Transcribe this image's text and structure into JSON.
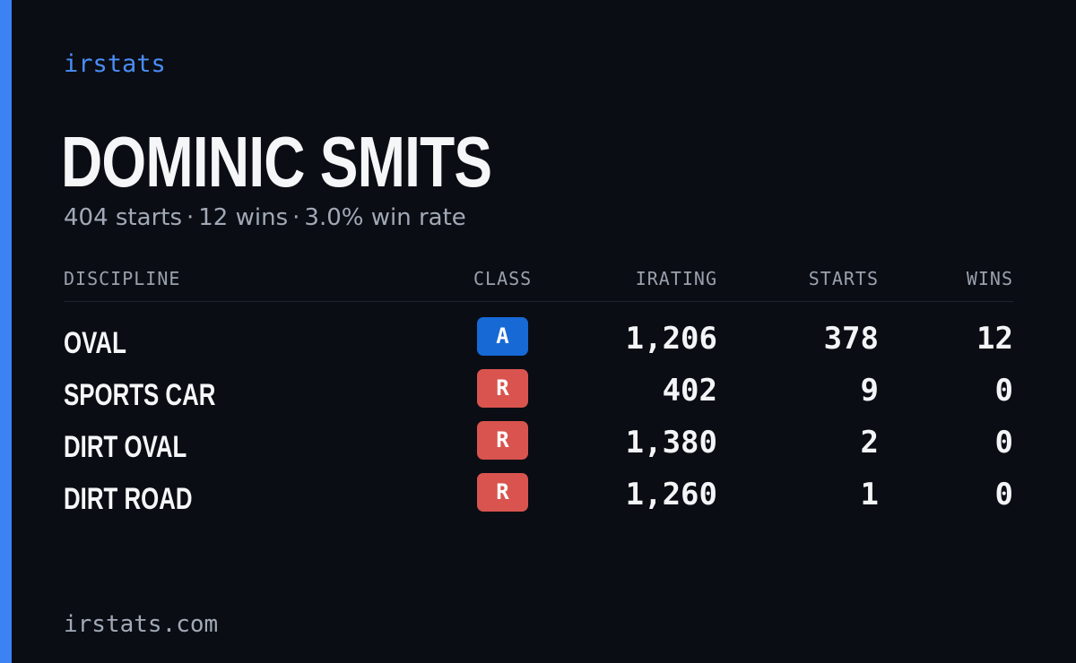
{
  "brand": "irstats",
  "player": {
    "name": "DOMINIC SMITS"
  },
  "summary": {
    "starts": "404 starts",
    "wins": "12 wins",
    "win_rate": "3.0% win rate",
    "separator": "·"
  },
  "table": {
    "headers": {
      "discipline": "DISCIPLINE",
      "class": "CLASS",
      "irating": "IRATING",
      "starts": "STARTS",
      "wins": "WINS"
    },
    "rows": [
      {
        "discipline": "OVAL",
        "class": "A",
        "class_color": "#1769d6",
        "irating": "1,206",
        "starts": "378",
        "wins": "12"
      },
      {
        "discipline": "SPORTS CAR",
        "class": "R",
        "class_color": "#d9544f",
        "irating": "402",
        "starts": "9",
        "wins": "0"
      },
      {
        "discipline": "DIRT OVAL",
        "class": "R",
        "class_color": "#d9544f",
        "irating": "1,380",
        "starts": "2",
        "wins": "0"
      },
      {
        "discipline": "DIRT ROAD",
        "class": "R",
        "class_color": "#d9544f",
        "irating": "1,260",
        "starts": "1",
        "wins": "0"
      }
    ]
  },
  "footer": {
    "url": "irstats.com"
  },
  "colors": {
    "background": "#0a0d14",
    "accent": "#3d82f3",
    "brand_text": "#4a8ef7",
    "class_a": "#1769d6",
    "class_r": "#d9544f"
  }
}
